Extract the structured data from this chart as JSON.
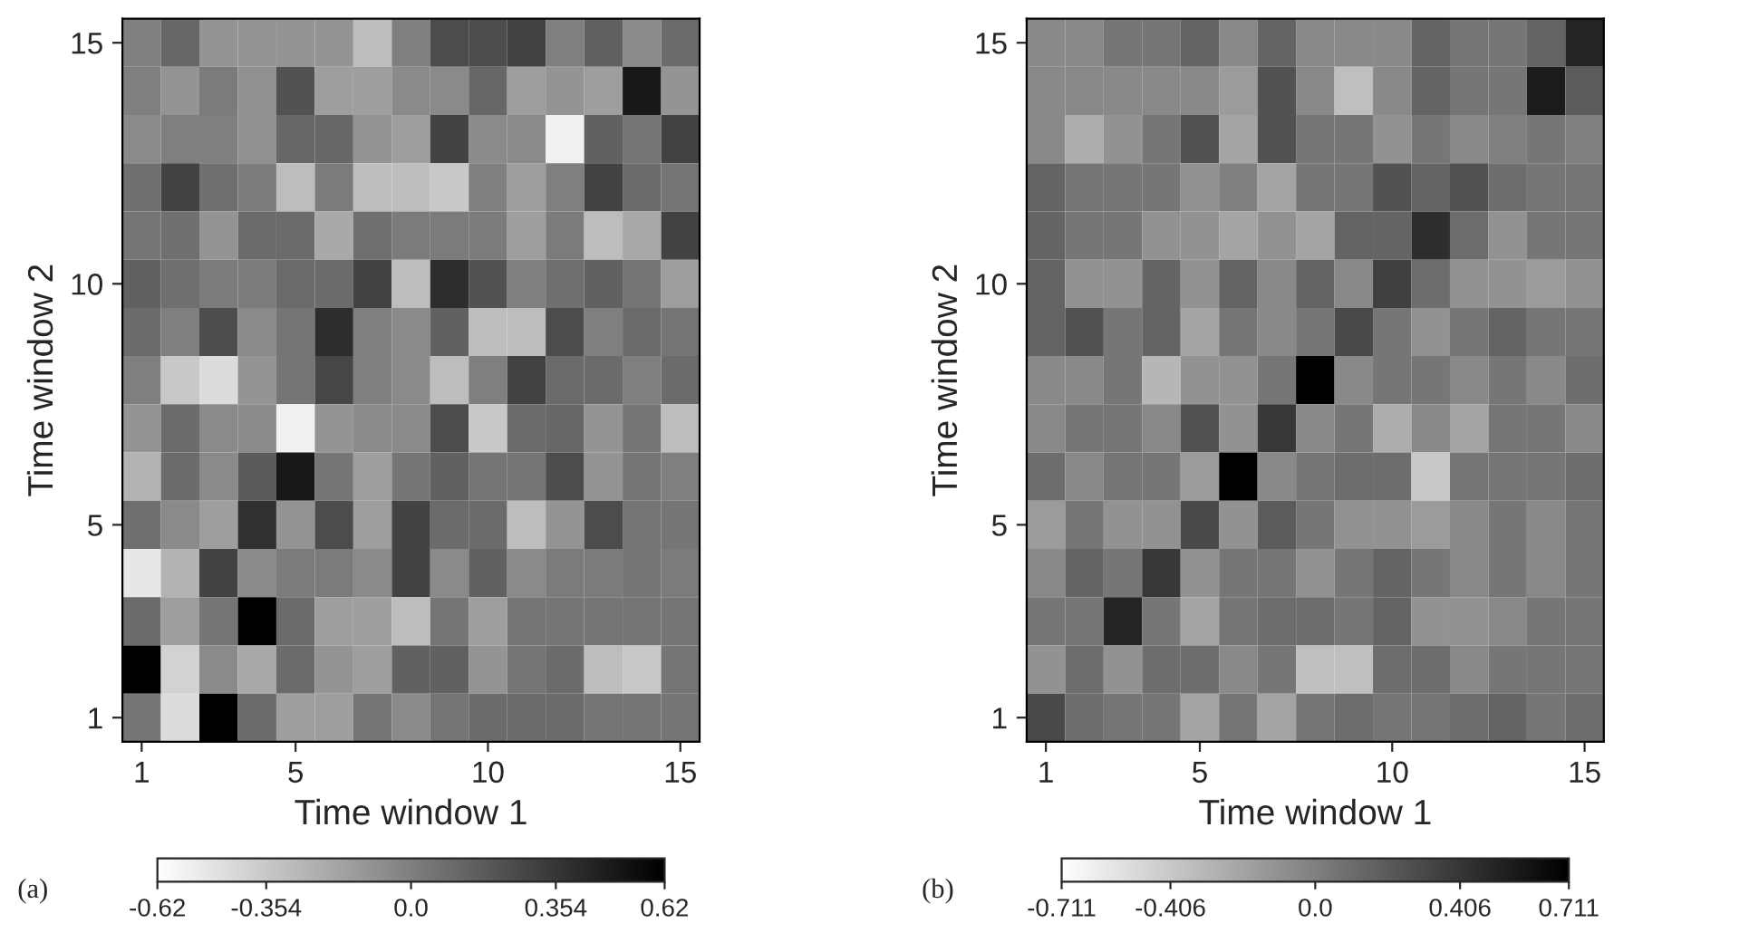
{
  "chart_data": [
    {
      "type": "heatmap",
      "xlabel": "Time window 1",
      "ylabel": "Time window 2",
      "categories": [
        "1",
        null,
        null,
        null,
        "5",
        null,
        null,
        null,
        null,
        "10",
        null,
        null,
        null,
        null,
        "15"
      ],
      "y_categories": [
        "15",
        null,
        null,
        null,
        null,
        "10",
        null,
        null,
        null,
        null,
        "5",
        null,
        null,
        null,
        "1"
      ],
      "cells": [
        [
          0.0,
          0.12,
          -0.1,
          -0.1,
          -0.1,
          -0.1,
          -0.3,
          0.0,
          0.25,
          0.25,
          0.3,
          0.0,
          0.15,
          -0.05,
          0.1
        ],
        [
          0.0,
          -0.1,
          0.02,
          -0.08,
          0.22,
          -0.15,
          -0.15,
          -0.05,
          -0.05,
          0.12,
          -0.15,
          -0.1,
          -0.15,
          0.5,
          -0.1
        ],
        [
          -0.05,
          0.0,
          0.0,
          -0.08,
          0.12,
          0.12,
          -0.1,
          -0.15,
          0.3,
          -0.05,
          -0.05,
          -0.55,
          0.15,
          0.05,
          0.3
        ],
        [
          0.08,
          0.3,
          0.08,
          0.02,
          -0.3,
          0.02,
          -0.3,
          -0.3,
          -0.35,
          0.0,
          -0.15,
          0.0,
          0.3,
          0.1,
          0.05
        ],
        [
          0.05,
          0.08,
          -0.1,
          0.1,
          0.1,
          -0.2,
          0.08,
          0.02,
          0.02,
          0.02,
          -0.15,
          0.02,
          -0.3,
          -0.2,
          0.3
        ],
        [
          0.15,
          0.08,
          0.02,
          0.02,
          0.1,
          0.1,
          0.3,
          -0.3,
          0.4,
          0.22,
          0.0,
          0.08,
          0.15,
          0.05,
          -0.15
        ],
        [
          0.1,
          0.0,
          0.25,
          -0.05,
          0.05,
          0.4,
          0.0,
          -0.05,
          0.15,
          -0.3,
          -0.3,
          0.25,
          0.0,
          0.1,
          0.05
        ],
        [
          0.0,
          -0.35,
          -0.45,
          -0.1,
          0.05,
          0.28,
          0.0,
          -0.05,
          -0.3,
          0.0,
          0.3,
          0.1,
          0.1,
          0.0,
          0.1
        ],
        [
          -0.1,
          0.1,
          -0.05,
          -0.05,
          -0.55,
          -0.1,
          -0.05,
          -0.05,
          0.25,
          -0.35,
          0.1,
          0.12,
          -0.1,
          0.05,
          -0.3
        ],
        [
          -0.25,
          0.1,
          -0.05,
          0.18,
          0.5,
          0.05,
          -0.15,
          0.05,
          0.15,
          0.05,
          0.05,
          0.25,
          -0.1,
          0.05,
          0.0
        ],
        [
          0.08,
          -0.05,
          -0.15,
          0.38,
          -0.1,
          0.25,
          -0.15,
          0.3,
          0.1,
          0.1,
          -0.3,
          -0.1,
          0.25,
          0.05,
          0.05
        ],
        [
          -0.5,
          -0.25,
          0.3,
          -0.05,
          0.02,
          0.02,
          -0.05,
          0.3,
          -0.05,
          0.15,
          -0.05,
          0.02,
          0.02,
          0.05,
          0.02
        ],
        [
          0.1,
          -0.15,
          0.05,
          0.62,
          0.1,
          -0.15,
          -0.15,
          -0.3,
          0.05,
          -0.15,
          0.05,
          0.05,
          0.05,
          0.05,
          0.05
        ],
        [
          0.62,
          -0.4,
          -0.05,
          -0.2,
          0.1,
          -0.1,
          -0.15,
          0.15,
          0.15,
          -0.1,
          0.05,
          0.1,
          -0.3,
          -0.35,
          0.05
        ],
        [
          0.05,
          -0.45,
          0.62,
          0.1,
          -0.15,
          -0.15,
          0.05,
          -0.05,
          0.05,
          0.1,
          0.1,
          0.1,
          0.05,
          0.05,
          0.05
        ]
      ],
      "clim": [
        -0.62,
        0.62
      ],
      "cticks": [
        {
          "value": -0.62,
          "label": "-0.62"
        },
        {
          "value": -0.354,
          "label": "-0.354"
        },
        {
          "value": 0,
          "label": "0.0"
        },
        {
          "value": 0.354,
          "label": "0.354"
        },
        {
          "value": 0.62,
          "label": "0.62"
        }
      ],
      "annotations": [
        "(a)"
      ]
    },
    {
      "type": "heatmap",
      "xlabel": "Time window 1",
      "ylabel": "Time window 2",
      "categories": [
        "1",
        null,
        null,
        null,
        "5",
        null,
        null,
        null,
        null,
        "10",
        null,
        null,
        null,
        null,
        "15"
      ],
      "y_categories": [
        "15",
        null,
        null,
        null,
        null,
        "10",
        null,
        null,
        null,
        null,
        "5",
        null,
        null,
        null,
        "1"
      ],
      "cells": [
        [
          -0.05,
          -0.05,
          0.05,
          0.05,
          0.15,
          -0.05,
          0.15,
          -0.05,
          -0.05,
          -0.05,
          0.15,
          0.05,
          0.05,
          0.15,
          0.5
        ],
        [
          -0.05,
          -0.05,
          -0.05,
          -0.05,
          -0.05,
          -0.15,
          0.25,
          -0.05,
          -0.35,
          -0.05,
          0.15,
          0.05,
          0.05,
          0.55,
          0.2
        ],
        [
          -0.05,
          -0.25,
          -0.1,
          0.05,
          0.25,
          -0.2,
          0.25,
          0.05,
          0.05,
          -0.1,
          0.05,
          -0.05,
          0.0,
          0.05,
          0.0
        ],
        [
          0.15,
          0.05,
          0.05,
          0.05,
          -0.1,
          0.0,
          -0.2,
          0.05,
          0.05,
          0.25,
          0.15,
          0.25,
          0.1,
          0.05,
          0.05
        ],
        [
          0.15,
          0.05,
          0.05,
          -0.1,
          -0.1,
          -0.2,
          -0.1,
          -0.2,
          0.15,
          0.15,
          0.45,
          0.1,
          -0.1,
          0.05,
          0.05
        ],
        [
          0.15,
          -0.1,
          -0.1,
          0.15,
          -0.1,
          0.15,
          -0.05,
          0.15,
          -0.05,
          0.35,
          0.1,
          -0.1,
          -0.1,
          -0.15,
          -0.1
        ],
        [
          0.15,
          0.25,
          0.05,
          0.15,
          -0.2,
          0.05,
          -0.05,
          0.05,
          0.3,
          0.05,
          -0.1,
          0.05,
          0.15,
          0.05,
          0.05
        ],
        [
          -0.05,
          -0.05,
          0.05,
          -0.3,
          -0.1,
          -0.1,
          0.05,
          0.711,
          -0.05,
          0.05,
          0.05,
          -0.05,
          0.05,
          -0.05,
          0.1
        ],
        [
          -0.05,
          0.05,
          0.05,
          -0.05,
          0.25,
          -0.1,
          0.4,
          -0.05,
          0.05,
          -0.25,
          -0.05,
          -0.2,
          0.05,
          0.05,
          -0.05
        ],
        [
          0.1,
          -0.05,
          0.05,
          0.05,
          -0.15,
          0.711,
          -0.05,
          0.05,
          0.1,
          0.1,
          -0.4,
          0.05,
          0.05,
          0.05,
          0.1
        ],
        [
          -0.15,
          0.05,
          -0.1,
          -0.1,
          0.3,
          -0.1,
          0.2,
          0.05,
          -0.1,
          -0.1,
          -0.15,
          -0.05,
          0.05,
          -0.05,
          0.05
        ],
        [
          -0.05,
          0.15,
          0.05,
          0.4,
          -0.1,
          0.05,
          0.05,
          -0.1,
          0.05,
          0.15,
          0.05,
          -0.05,
          0.05,
          -0.05,
          0.05
        ],
        [
          0.05,
          0.05,
          0.5,
          0.05,
          -0.2,
          0.05,
          0.1,
          0.1,
          0.05,
          0.15,
          -0.1,
          -0.1,
          -0.05,
          0.05,
          0.05
        ],
        [
          -0.1,
          0.1,
          -0.1,
          0.1,
          0.1,
          -0.05,
          0.05,
          -0.35,
          -0.35,
          0.1,
          0.1,
          -0.05,
          0.05,
          0.05,
          0.05
        ],
        [
          0.3,
          0.1,
          0.05,
          0.05,
          -0.2,
          0.05,
          -0.2,
          0.05,
          0.1,
          0.05,
          0.05,
          0.1,
          0.15,
          0.05,
          0.1
        ]
      ],
      "clim": [
        -0.711,
        0.711
      ],
      "cticks": [
        {
          "value": -0.711,
          "label": "-0.711"
        },
        {
          "value": -0.406,
          "label": "-0.406"
        },
        {
          "value": 0,
          "label": "0.0"
        },
        {
          "value": 0.406,
          "label": "0.406"
        },
        {
          "value": 0.711,
          "label": "0.711"
        }
      ],
      "annotations": [
        "(b)"
      ]
    }
  ]
}
